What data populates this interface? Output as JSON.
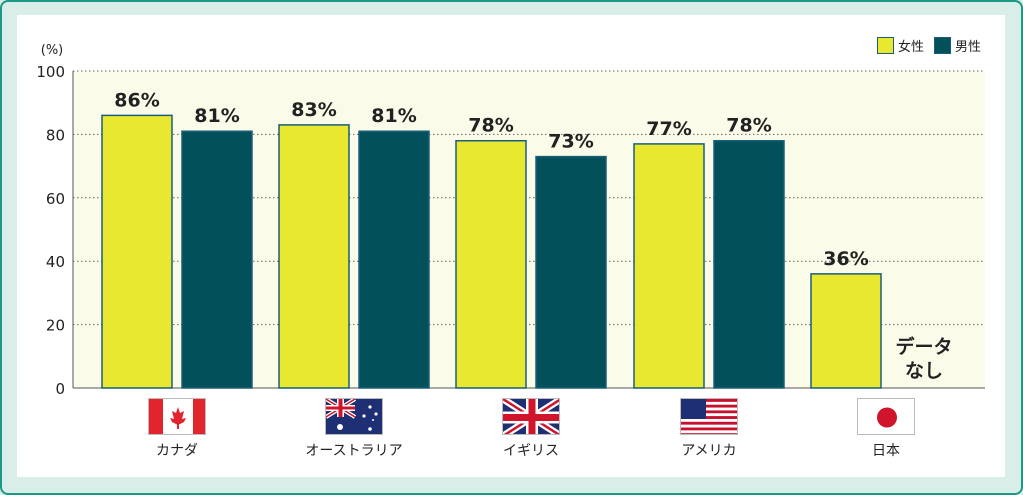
{
  "chart_data": {
    "type": "bar",
    "unit_label": "(%)",
    "categories": [
      "カナダ",
      "オーストラリア",
      "イギリス",
      "アメリカ",
      "日本"
    ],
    "series": [
      {
        "name": "女性",
        "values": [
          86,
          83,
          78,
          77,
          36
        ],
        "labels": [
          "86%",
          "83%",
          "78%",
          "77%",
          "36%"
        ],
        "color": "#e8e831"
      },
      {
        "name": "男性",
        "values": [
          81,
          81,
          73,
          78,
          null
        ],
        "labels": [
          "81%",
          "81%",
          "73%",
          "78%",
          ""
        ],
        "color": "#02505a"
      }
    ],
    "ylim": [
      0,
      100
    ],
    "yticks": [
      "0",
      "20",
      "40",
      "60",
      "80",
      "100"
    ],
    "grid": true,
    "legend_position": "top-right",
    "no_data_note": [
      "データ",
      "なし"
    ],
    "plot_background": "#fbfbe9",
    "flags": [
      "canada-flag-icon",
      "australia-flag-icon",
      "uk-flag-icon",
      "usa-flag-icon",
      "japan-flag-icon"
    ]
  }
}
